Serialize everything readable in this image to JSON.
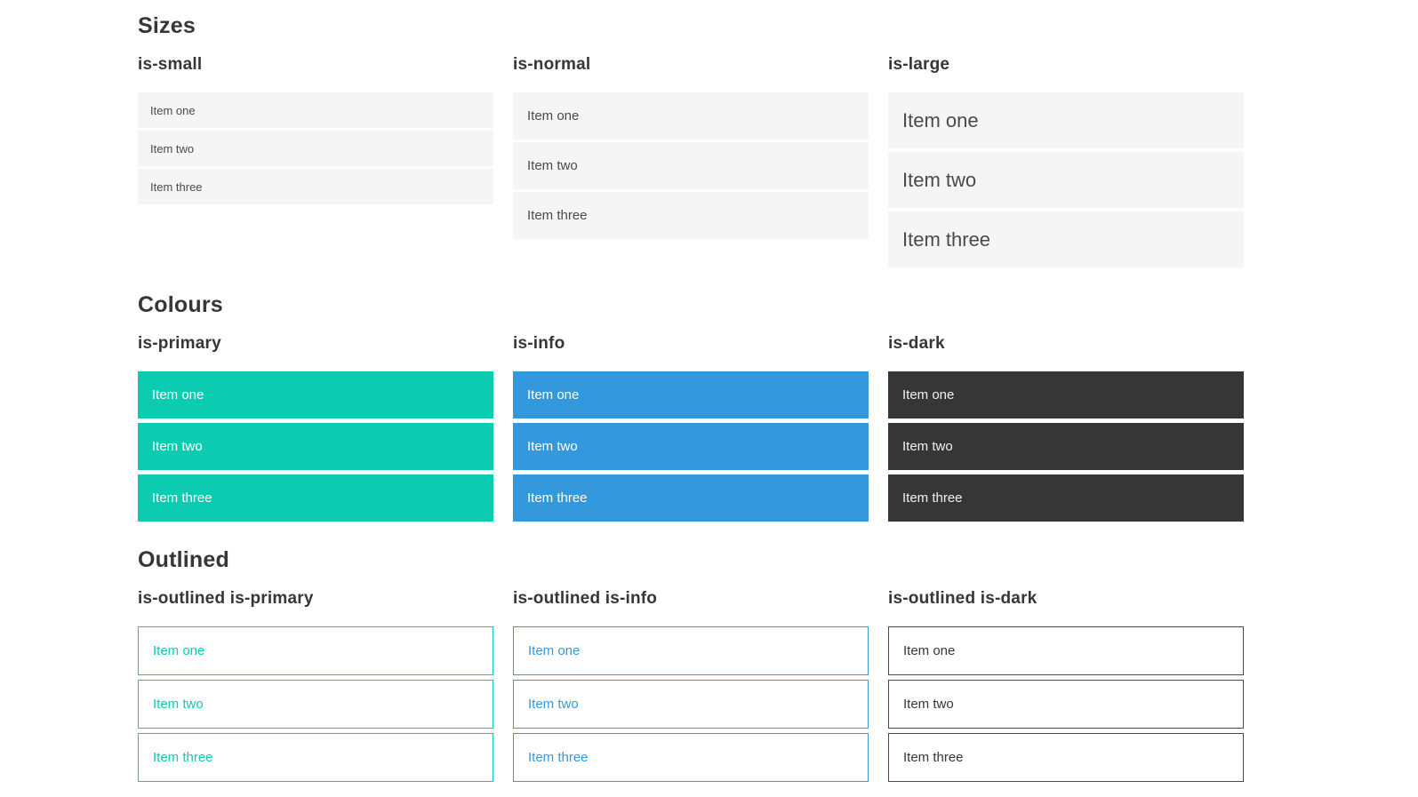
{
  "colors": {
    "primary": "#0bccb0",
    "info": "#3499dc",
    "dark": "#363636",
    "item_background": "#f5f5f5",
    "item_text": "#4a4a4a",
    "heading_text": "#363636"
  },
  "sections": [
    {
      "title": "Sizes",
      "groups": [
        {
          "label": "is-small",
          "variant": "small",
          "items": [
            "Item one",
            "Item two",
            "Item three"
          ]
        },
        {
          "label": "is-normal",
          "variant": "normal",
          "items": [
            "Item one",
            "Item two",
            "Item three"
          ]
        },
        {
          "label": "is-large",
          "variant": "large",
          "items": [
            "Item one",
            "Item two",
            "Item three"
          ]
        }
      ]
    },
    {
      "title": "Colours",
      "groups": [
        {
          "label": "is-primary",
          "variant": "primary",
          "items": [
            "Item one",
            "Item two",
            "Item three"
          ]
        },
        {
          "label": "is-info",
          "variant": "info",
          "items": [
            "Item one",
            "Item two",
            "Item three"
          ]
        },
        {
          "label": "is-dark",
          "variant": "dark",
          "items": [
            "Item one",
            "Item two",
            "Item three"
          ]
        }
      ]
    },
    {
      "title": "Outlined",
      "groups": [
        {
          "label": "is-outlined is-primary",
          "variant": "outlined-primary",
          "items": [
            "Item one",
            "Item two",
            "Item three"
          ]
        },
        {
          "label": "is-outlined is-info",
          "variant": "outlined-info",
          "items": [
            "Item one",
            "Item two",
            "Item three"
          ]
        },
        {
          "label": "is-outlined is-dark",
          "variant": "outlined-dark",
          "items": [
            "Item one",
            "Item two",
            "Item three"
          ]
        }
      ]
    }
  ]
}
